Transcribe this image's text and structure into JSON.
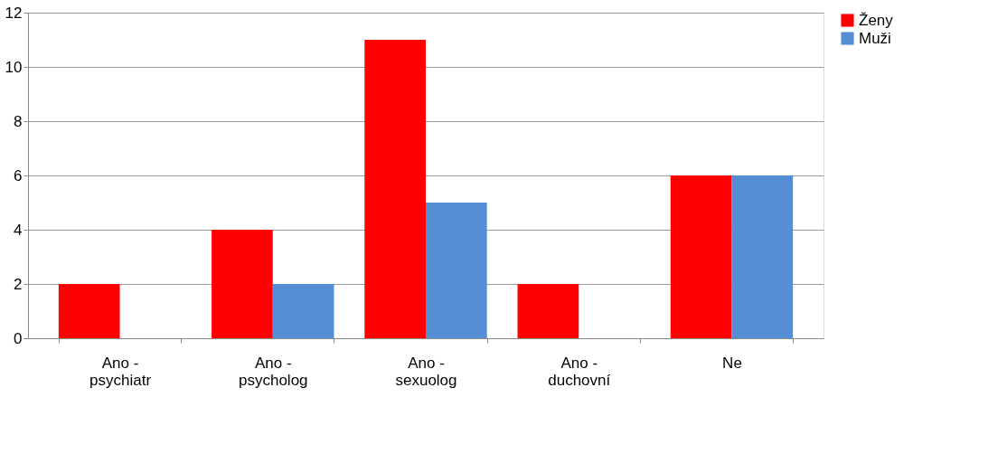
{
  "chart_data": {
    "type": "bar",
    "categories": [
      "Ano - psychiatr",
      "Ano - psycholog",
      "Ano - sexuolog",
      "Ano - duchovní",
      "Ne"
    ],
    "series": [
      {
        "name": "Ženy",
        "color": "#ff0000",
        "values": [
          2,
          4,
          11,
          2,
          6
        ]
      },
      {
        "name": "Muži",
        "color": "#558ed5",
        "values": [
          0,
          2,
          5,
          0,
          6
        ]
      }
    ],
    "ylim": [
      0,
      12
    ],
    "yticks": [
      0,
      2,
      4,
      6,
      8,
      10,
      12
    ],
    "grid": "y",
    "legend": "right"
  }
}
